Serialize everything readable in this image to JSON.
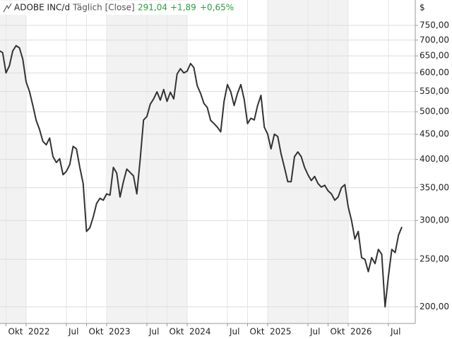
{
  "chart_data": {
    "type": "line",
    "header": {
      "name": "ADOBE INC/d",
      "interval": "Täglich [Close]",
      "last": "291,04",
      "change": "+1,89",
      "change_pct": "+0,65%"
    },
    "y_unit": "$",
    "ylog": true,
    "grid": true,
    "ylim": [
      185,
      845
    ],
    "yticks": [
      {
        "value": 200,
        "label": "200,00"
      },
      {
        "value": 250,
        "label": "250,00"
      },
      {
        "value": 300,
        "label": "300,00"
      },
      {
        "value": 350,
        "label": "350,00"
      },
      {
        "value": 400,
        "label": "400,00"
      },
      {
        "value": 450,
        "label": "450,00"
      },
      {
        "value": 500,
        "label": "500,00"
      },
      {
        "value": 550,
        "label": "550,00"
      },
      {
        "value": 600,
        "label": "600,00"
      },
      {
        "value": 650,
        "label": "650,00"
      },
      {
        "value": 700,
        "label": "700,00"
      },
      {
        "value": 750,
        "label": "750,00"
      }
    ],
    "categories": [
      null,
      null,
      "Okt",
      null,
      null,
      null,
      null,
      null,
      "2022",
      null,
      null,
      null,
      null,
      null,
      null,
      null,
      null,
      null,
      null,
      null,
      "Jul",
      null,
      null,
      null,
      null,
      null,
      "Okt",
      null,
      null,
      null,
      null,
      null,
      "2023",
      null,
      null,
      null,
      null,
      null,
      null,
      null,
      null,
      null,
      null,
      null,
      "Jul",
      null,
      null,
      null,
      null,
      null,
      "Okt",
      null,
      null,
      null,
      null,
      null,
      "2024",
      null,
      null,
      null,
      null,
      null,
      null,
      null,
      null,
      null,
      null,
      null,
      "Jul",
      null,
      null,
      null,
      null,
      null,
      "Okt",
      null,
      null,
      null,
      null,
      null,
      "2025",
      null,
      null,
      null,
      null,
      null,
      null,
      null,
      null,
      null,
      null,
      null,
      "Jul",
      null,
      null,
      null,
      null,
      null,
      "Okt",
      null,
      null,
      null,
      null,
      null,
      "2026",
      null,
      null,
      null,
      null,
      null,
      null,
      null,
      null,
      null,
      null,
      null,
      "Jul",
      null,
      null,
      null,
      null
    ],
    "series": [
      {
        "name": "ADOBE INC",
        "color": "#333333",
        "values": [
          666,
          660,
          600,
          620,
          665,
          682,
          675,
          640,
          575,
          550,
          515,
          480,
          460,
          435,
          428,
          442,
          405,
          394,
          401,
          372,
          378,
          390,
          425,
          420,
          385,
          357,
          285,
          290,
          305,
          325,
          333,
          330,
          340,
          338,
          385,
          375,
          335,
          360,
          382,
          376,
          370,
          340,
          400,
          481,
          489,
          518,
          531,
          549,
          528,
          555,
          525,
          548,
          531,
          597,
          612,
          600,
          605,
          627,
          615,
          565,
          545,
          520,
          510,
          480,
          473,
          465,
          455,
          525,
          568,
          549,
          515,
          545,
          568,
          530,
          473,
          485,
          481,
          515,
          540,
          465,
          450,
          420,
          450,
          445,
          410,
          385,
          360,
          360,
          405,
          414,
          405,
          385,
          372,
          362,
          369,
          357,
          351,
          354,
          345,
          340,
          330,
          335,
          350,
          355,
          320,
          300,
          275,
          285,
          252,
          250,
          236,
          252,
          245,
          262,
          256,
          200,
          231,
          262,
          258,
          280,
          291.04
        ]
      }
    ]
  }
}
